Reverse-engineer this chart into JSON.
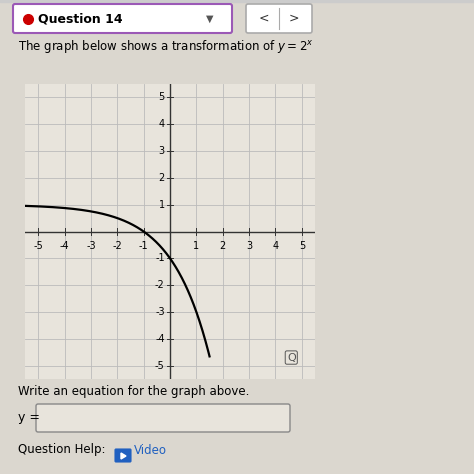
{
  "title_text": "The graph below shows a transformation of $y = 2^x$",
  "question_label": "Question 14",
  "xlim": [
    -5.5,
    5.5
  ],
  "ylim": [
    -5.5,
    5.5
  ],
  "xticks": [
    -5,
    -4,
    -3,
    -2,
    -1,
    1,
    2,
    3,
    4,
    5
  ],
  "yticks": [
    -5,
    -4,
    -3,
    -2,
    -1,
    1,
    2,
    3,
    4,
    5
  ],
  "curve_color": "#000000",
  "grid_color": "#bbbbbb",
  "axis_color": "#333333",
  "bg_color": "#e8e4dc",
  "page_bg": "#dbd7cf",
  "header_bg": "#ffffff",
  "header_border": "#9b59b6",
  "write_equation_text": "Write an equation for the graph above.",
  "y_equals_text": "y =",
  "question_help_text": "Question Help:",
  "video_text": "Video",
  "video_color": "#2060c0",
  "answer_box_color": "#e8e4dc",
  "answer_box_border": "#888888",
  "nav_border": "#aaaaaa"
}
